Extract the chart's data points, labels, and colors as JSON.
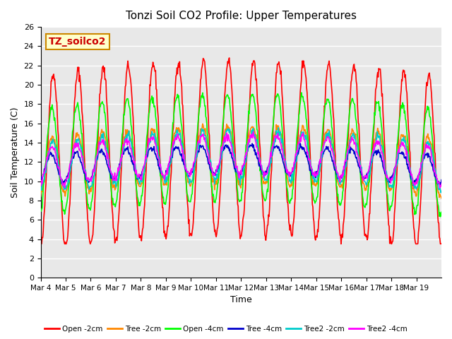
{
  "title": "Tonzi Soil CO2 Profile: Upper Temperatures",
  "xlabel": "Time",
  "ylabel": "Soil Temperature (C)",
  "ylim": [
    0,
    26
  ],
  "yticks": [
    0,
    2,
    4,
    6,
    8,
    10,
    12,
    14,
    16,
    18,
    20,
    22,
    24,
    26
  ],
  "xtick_labels": [
    "Mar 4",
    "Mar 5",
    "Mar 6",
    "Mar 7",
    "Mar 8",
    "Mar 9",
    "Mar 10",
    "Mar 11",
    "Mar 12",
    "Mar 13",
    "Mar 14",
    "Mar 15",
    "Mar 16",
    "Mar 17",
    "Mar 18",
    "Mar 19"
  ],
  "annotation_text": "TZ_soilco2",
  "annotation_bg": "#ffffcc",
  "annotation_border": "#cc8800",
  "legend_labels": [
    "Open -2cm",
    "Tree -2cm",
    "Open -4cm",
    "Tree -4cm",
    "Tree2 -2cm",
    "Tree2 -4cm"
  ],
  "line_colors": [
    "#ff0000",
    "#ff8800",
    "#00ff00",
    "#0000cc",
    "#00cccc",
    "#ff00ff"
  ],
  "background_color": "#e8e8e8",
  "grid_color": "#ffffff",
  "n_days": 16,
  "pts_per_day": 48
}
